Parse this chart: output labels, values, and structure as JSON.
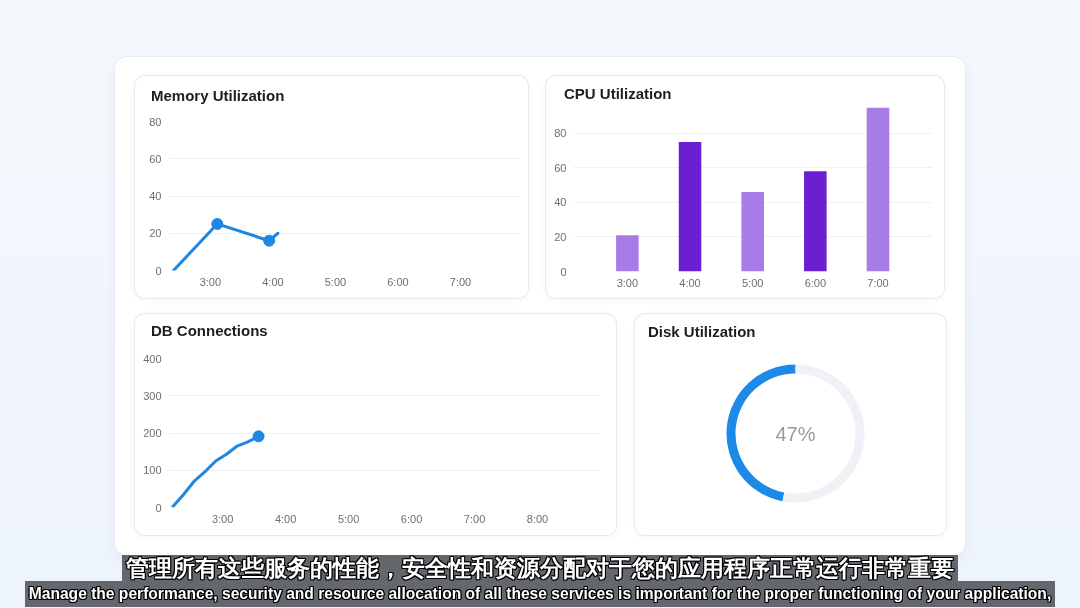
{
  "chart_data": [
    {
      "type": "line",
      "title": "Memory Utilization",
      "xlim": [
        2.33,
        7.96
      ],
      "xticks": [
        {
          "value": 3,
          "label": "3:00"
        },
        {
          "value": 4,
          "label": "4:00"
        },
        {
          "value": 5,
          "label": "5:00"
        },
        {
          "value": 6,
          "label": "6:00"
        },
        {
          "value": 7,
          "label": "7:00"
        }
      ],
      "ylim": [
        0,
        80
      ],
      "yticks": [
        0,
        20,
        40,
        60,
        80
      ],
      "grid": "y",
      "series": [
        {
          "type": "line",
          "color": "#2086e3",
          "x": [
            2.41,
            3.11,
            3.94,
            4.08
          ],
          "values": [
            0,
            25,
            16,
            20
          ]
        },
        {
          "type": "scatter",
          "color": "#2086e3",
          "marker": "circle",
          "x": [
            3.11,
            3.94
          ],
          "values": [
            25,
            16
          ]
        }
      ]
    },
    {
      "type": "bar",
      "title": "CPU Utilization",
      "x": [
        3,
        4,
        5,
        6,
        7
      ],
      "values": [
        21,
        75,
        46,
        58,
        95
      ],
      "colors": [
        "#a77ce6",
        "#6b1fd0",
        "#a77ce6",
        "#6b1fd0",
        "#a77ce6"
      ],
      "xlim": [
        2.14,
        7.87
      ],
      "xticks": [
        {
          "value": 3,
          "label": "3:00"
        },
        {
          "value": 4,
          "label": "4:00"
        },
        {
          "value": 5,
          "label": "5:00"
        },
        {
          "value": 6,
          "label": "6:00"
        },
        {
          "value": 7,
          "label": "7:00"
        }
      ],
      "ylim": [
        0,
        95
      ],
      "yticks": [
        0,
        20,
        40,
        60,
        80
      ],
      "grid": "y"
    },
    {
      "type": "line",
      "title": "DB Connections",
      "xlim": [
        2.14,
        9.0
      ],
      "xticks": [
        {
          "value": 3,
          "label": "3:00"
        },
        {
          "value": 4,
          "label": "4:00"
        },
        {
          "value": 5,
          "label": "5:00"
        },
        {
          "value": 6,
          "label": "6:00"
        },
        {
          "value": 7,
          "label": "7:00"
        },
        {
          "value": 8,
          "label": "8:00"
        }
      ],
      "ylim": [
        0,
        400
      ],
      "yticks": [
        0,
        100,
        200,
        300,
        400
      ],
      "grid": "y",
      "series": [
        {
          "type": "line",
          "color": "#2086e3",
          "x": [
            2.21,
            2.38,
            2.55,
            2.72,
            2.89,
            3.06,
            3.23,
            3.4,
            3.57
          ],
          "values": [
            3,
            35,
            71,
            96,
            125,
            143,
            165,
            176,
            191
          ]
        },
        {
          "type": "scatter",
          "color": "#2086e3",
          "marker": "circle",
          "x": [
            3.57
          ],
          "values": [
            191
          ]
        }
      ]
    },
    {
      "type": "donut",
      "title": "Disk Utilization",
      "categories": [
        null,
        null
      ],
      "values": [
        47,
        53
      ],
      "colors": [
        "#1e8ae8",
        "#eef1f5"
      ],
      "annotations": [
        "47%"
      ]
    },
    {
      "type": "other",
      "annotations": [
        "管理所有这些服务的性能，安全性和资源分配对于您的应用程序正常运行非常重要",
        "Manage the performance, security and resource allocation of all these services is important for the proper functioning of your application,"
      ]
    }
  ]
}
